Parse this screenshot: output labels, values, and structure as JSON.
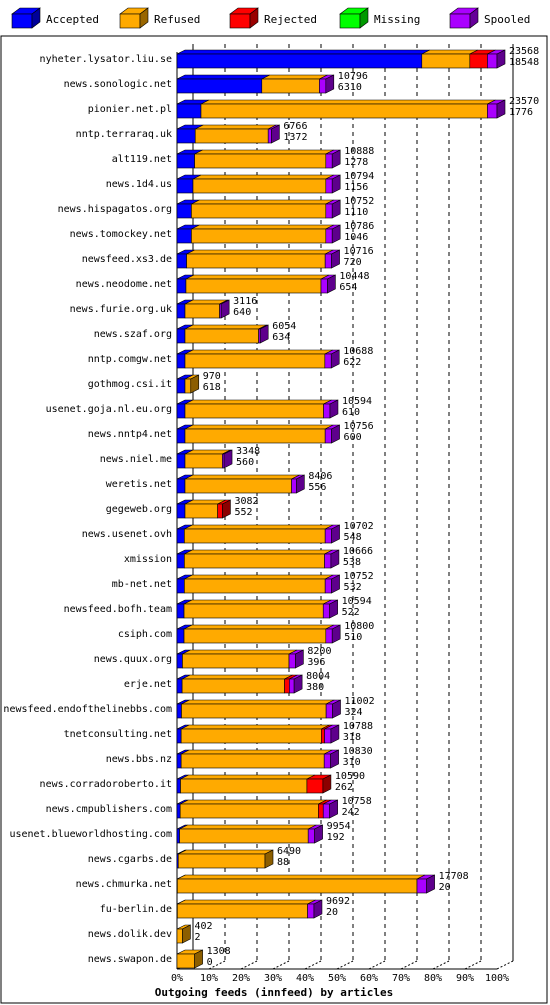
{
  "chart_data": {
    "type": "bar",
    "orientation": "horizontal",
    "stacked": true,
    "normalized_to_percent": true,
    "title": "Outgoing feeds (innfeed) by articles",
    "xlim": [
      0,
      100
    ],
    "x_ticks": [
      "0%",
      "10%",
      "20%",
      "30%",
      "40%",
      "50%",
      "60%",
      "70%",
      "80%",
      "90%",
      "100%"
    ],
    "legend_position": "top",
    "legend": [
      {
        "name": "Accepted",
        "color": "#0000ff"
      },
      {
        "name": "Refused",
        "color": "#ffaa00"
      },
      {
        "name": "Rejected",
        "color": "#ff0000"
      },
      {
        "name": "Missing",
        "color": "#00ff00"
      },
      {
        "name": "Spooled",
        "color": "#aa00ff"
      }
    ],
    "rows": [
      {
        "name": "nyheter.lysator.liu.se",
        "total": "23568",
        "second": "18548",
        "pct": [
          76.5,
          15.0,
          5.5,
          0,
          3.0
        ]
      },
      {
        "name": "news.sonologic.net",
        "total": "10796",
        "second": "6310",
        "pct": [
          26.5,
          18.0,
          0,
          0,
          2.0
        ]
      },
      {
        "name": "pionier.net.pl",
        "total": "23570",
        "second": "1776",
        "pct": [
          7.5,
          89.5,
          0,
          0,
          3.0
        ]
      },
      {
        "name": "nntp.terraraq.uk",
        "total": "6766",
        "second": "1372",
        "pct": [
          5.7,
          22.8,
          0,
          0,
          1.0
        ]
      },
      {
        "name": "alt119.net",
        "total": "10888",
        "second": "1278",
        "pct": [
          5.5,
          41.0,
          0,
          0,
          2.0
        ]
      },
      {
        "name": "news.1d4.us",
        "total": "10794",
        "second": "1156",
        "pct": [
          5.0,
          41.5,
          0,
          0,
          2.0
        ]
      },
      {
        "name": "news.hispagatos.org",
        "total": "10752",
        "second": "1110",
        "pct": [
          4.5,
          42.0,
          0,
          0,
          2.0
        ]
      },
      {
        "name": "news.tomockey.net",
        "total": "10786",
        "second": "1046",
        "pct": [
          4.5,
          42.0,
          0,
          0,
          2.0
        ]
      },
      {
        "name": "newsfeed.xs3.de",
        "total": "10716",
        "second": "720",
        "pct": [
          3.0,
          43.3,
          0,
          0,
          2.0
        ]
      },
      {
        "name": "news.neodome.net",
        "total": "10448",
        "second": "654",
        "pct": [
          2.8,
          42.2,
          0,
          0,
          2.0
        ]
      },
      {
        "name": "news.furie.org.uk",
        "total": "3116",
        "second": "640",
        "pct": [
          2.5,
          10.8,
          0,
          0,
          0.5
        ]
      },
      {
        "name": "news.szaf.org",
        "total": "6054",
        "second": "634",
        "pct": [
          2.5,
          23.0,
          0,
          0,
          0.5
        ]
      },
      {
        "name": "nntp.comgw.net",
        "total": "10688",
        "second": "622",
        "pct": [
          2.5,
          43.7,
          0,
          0,
          2.0
        ]
      },
      {
        "name": "gothmog.csi.it",
        "total": "970",
        "second": "618",
        "pct": [
          2.5,
          1.8,
          0,
          0,
          0
        ]
      },
      {
        "name": "usenet.goja.nl.eu.org",
        "total": "10594",
        "second": "610",
        "pct": [
          2.5,
          43.3,
          0,
          0,
          2.0
        ]
      },
      {
        "name": "news.nntp4.net",
        "total": "10756",
        "second": "600",
        "pct": [
          2.5,
          43.8,
          0,
          0,
          2.0
        ]
      },
      {
        "name": "news.niel.me",
        "total": "3348",
        "second": "560",
        "pct": [
          2.5,
          11.7,
          0,
          0,
          0.5
        ]
      },
      {
        "name": "weretis.net",
        "total": "8406",
        "second": "556",
        "pct": [
          2.5,
          33.3,
          0,
          0,
          1.5
        ]
      },
      {
        "name": "gegeweb.org",
        "total": "3082",
        "second": "552",
        "pct": [
          2.5,
          10.2,
          1.5,
          0,
          0
        ]
      },
      {
        "name": "news.usenet.ovh",
        "total": "10702",
        "second": "548",
        "pct": [
          2.3,
          44.0,
          0,
          0,
          2.0
        ]
      },
      {
        "name": "xmission",
        "total": "10666",
        "second": "538",
        "pct": [
          2.3,
          43.8,
          0,
          0,
          2.0
        ]
      },
      {
        "name": "mb-net.net",
        "total": "10752",
        "second": "532",
        "pct": [
          2.3,
          44.0,
          0,
          0,
          2.0
        ]
      },
      {
        "name": "newsfeed.bofh.team",
        "total": "10594",
        "second": "522",
        "pct": [
          2.2,
          43.5,
          0,
          0,
          2.0
        ]
      },
      {
        "name": "csiph.com",
        "total": "10800",
        "second": "510",
        "pct": [
          2.2,
          44.3,
          0,
          0,
          2.0
        ]
      },
      {
        "name": "news.quux.org",
        "total": "8200",
        "second": "396",
        "pct": [
          1.7,
          33.3,
          0,
          0,
          2.0
        ]
      },
      {
        "name": "erje.net",
        "total": "8004",
        "second": "380",
        "pct": [
          1.6,
          32.0,
          1.5,
          0,
          1.5
        ]
      },
      {
        "name": "newsfeed.endofthelinebbs.com",
        "total": "11002",
        "second": "324",
        "pct": [
          1.4,
          45.2,
          0,
          0,
          2.0
        ]
      },
      {
        "name": "tnetconsulting.net",
        "total": "10788",
        "second": "318",
        "pct": [
          1.3,
          43.8,
          1.0,
          0,
          2.0
        ]
      },
      {
        "name": "news.bbs.nz",
        "total": "10830",
        "second": "310",
        "pct": [
          1.3,
          44.7,
          0,
          0,
          2.0
        ]
      },
      {
        "name": "news.corradoroberto.it",
        "total": "10590",
        "second": "262",
        "pct": [
          1.1,
          39.5,
          5.0,
          0,
          0
        ]
      },
      {
        "name": "news.cmpublishers.com",
        "total": "10758",
        "second": "242",
        "pct": [
          1.0,
          43.2,
          1.5,
          0,
          2.0
        ]
      },
      {
        "name": "usenet.blueworldhosting.com",
        "total": "9954",
        "second": "192",
        "pct": [
          0.8,
          40.2,
          0,
          0,
          2.0
        ]
      },
      {
        "name": "news.cgarbs.de",
        "total": "6490",
        "second": "88",
        "pct": [
          0.4,
          27.1,
          0,
          0,
          0
        ]
      },
      {
        "name": "news.chmurka.net",
        "total": "17708",
        "second": "20",
        "pct": [
          0.1,
          74.9,
          0,
          0,
          3.0
        ]
      },
      {
        "name": "fu-berlin.de",
        "total": "9692",
        "second": "20",
        "pct": [
          0.1,
          40.7,
          0,
          0,
          2.0
        ]
      },
      {
        "name": "news.dolik.dev",
        "total": "402",
        "second": "2",
        "pct": [
          0,
          1.7,
          0,
          0,
          0
        ]
      },
      {
        "name": "news.swapon.de",
        "total": "1308",
        "second": "0",
        "pct": [
          0,
          5.5,
          0,
          0,
          0
        ]
      }
    ]
  }
}
